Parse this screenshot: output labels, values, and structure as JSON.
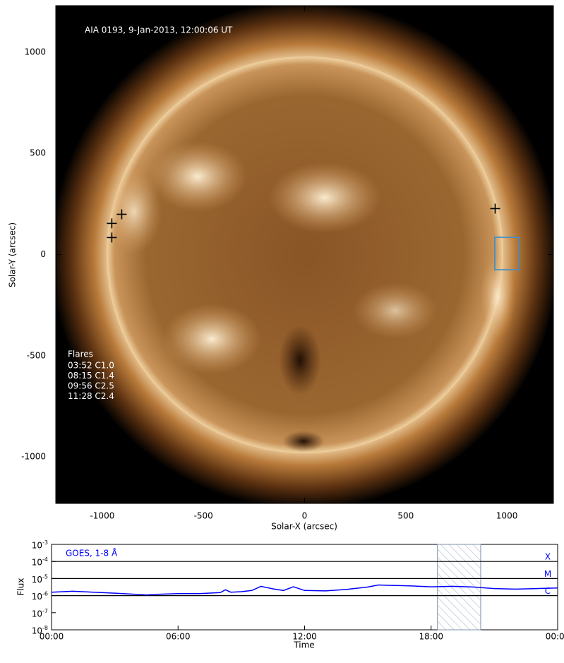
{
  "chart_data": [
    {
      "type": "image",
      "annotation": "AIA 0193, 9-Jan-2013, 12:00:06 UT",
      "xlabel": "Solar-X (arcsec)",
      "ylabel": "Solar-Y (arcsec)",
      "xlim": [
        -1230,
        1230
      ],
      "ylim": [
        -1230,
        1230
      ],
      "xticks": [
        -1000,
        -500,
        0,
        500,
        1000
      ],
      "yticks": [
        -1000,
        -500,
        0,
        500,
        1000
      ],
      "flares_title": "Flares",
      "flares": [
        "03:52 C1.0",
        "08:15 C1.4",
        "09:56 C2.5",
        "11:28 C2.4"
      ],
      "markers": [
        {
          "x": -904,
          "y": 199
        },
        {
          "x": -953,
          "y": 154
        },
        {
          "x": -953,
          "y": 84
        },
        {
          "x": 942,
          "y": 227
        }
      ],
      "marker_color": "#000000",
      "box": {
        "x": [
          940,
          1060
        ],
        "y": [
          -75,
          85
        ],
        "color": "#3a8fd0"
      }
    },
    {
      "type": "line",
      "xlabel": "Time",
      "ylabel": "Flux",
      "log_y": true,
      "xlim": [
        0,
        24
      ],
      "ylim": [
        1e-08,
        0.001
      ],
      "xticks": [
        {
          "value": 0,
          "label": "00:00"
        },
        {
          "value": 6,
          "label": "06:00"
        },
        {
          "value": 12,
          "label": "12:00"
        },
        {
          "value": 18,
          "label": "18:00"
        },
        {
          "value": 24,
          "label": "00:00"
        }
      ],
      "yticks": [
        {
          "value": 1e-08,
          "label": "10-8"
        },
        {
          "value": 1e-07,
          "label": "10-7"
        },
        {
          "value": 1e-06,
          "label": "10-6"
        },
        {
          "value": 1e-05,
          "label": "10-5"
        },
        {
          "value": 0.0001,
          "label": "10-4"
        },
        {
          "value": 0.001,
          "label": "10-3"
        }
      ],
      "levels": [
        {
          "value": 0.0001,
          "label": "X"
        },
        {
          "value": 1e-05,
          "label": "M"
        },
        {
          "value": 1e-06,
          "label": "C"
        }
      ],
      "shade": [
        18.3,
        20.35
      ],
      "x": [
        0,
        1,
        2,
        3,
        4,
        4.5,
        5,
        6,
        7,
        8,
        8.25,
        8.5,
        9,
        9.5,
        9.93,
        10.5,
        11,
        11.47,
        12,
        13,
        14,
        15,
        15.5,
        16,
        17,
        18,
        19,
        20,
        21,
        22,
        23,
        24
      ],
      "series": [
        {
          "name": "GOES, 1-8 Å",
          "color": "#0000ff",
          "values": [
            1.6e-06,
            1.8e-06,
            1.6e-06,
            1.4e-06,
            1.2e-06,
            1.1e-06,
            1.2e-06,
            1.3e-06,
            1.3e-06,
            1.5e-06,
            2.2e-06,
            1.6e-06,
            1.7e-06,
            2e-06,
            3.5e-06,
            2.5e-06,
            2e-06,
            3.3e-06,
            2e-06,
            1.9e-06,
            2.3e-06,
            3.2e-06,
            4.2e-06,
            4e-06,
            3.7e-06,
            3.3e-06,
            3.5e-06,
            3.2e-06,
            2.6e-06,
            2.4e-06,
            2.6e-06,
            2.8e-06
          ]
        }
      ]
    }
  ]
}
